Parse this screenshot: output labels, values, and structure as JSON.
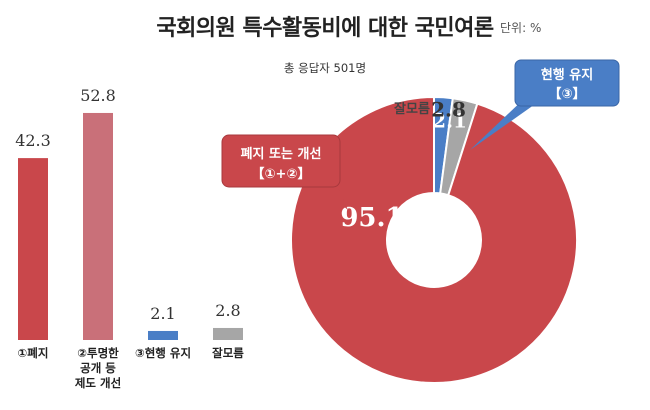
{
  "header": {
    "title": "국회의원 특수활동비에 대한 국민여론",
    "unit": "단위: %",
    "subtitle": "총 응답자 501명"
  },
  "colors": {
    "red": "#c9474b",
    "pink": "#c97079",
    "blue": "#4a7ec6",
    "gray": "#a6a6a6"
  },
  "chart_data": [
    {
      "type": "bar",
      "categories": [
        "①폐지",
        "②투명한 공개 등 제도 개선",
        "③현행 유지",
        "잘모름"
      ],
      "category_lines": [
        [
          "①폐지"
        ],
        [
          "②투명한",
          "공개 등",
          "제도 개선"
        ],
        [
          "③현행 유지"
        ],
        [
          "잘모름"
        ]
      ],
      "values": [
        42.3,
        52.8,
        2.1,
        2.8
      ],
      "value_labels": [
        "42.3",
        "52.8",
        "2.1",
        "2.8"
      ],
      "colors": [
        "#c9474b",
        "#c97079",
        "#4a7ec6",
        "#a6a6a6"
      ],
      "ylim": [
        0,
        60
      ]
    },
    {
      "type": "pie",
      "donut": true,
      "labels": [
        "현행 유지 【③】",
        "잘모름",
        "폐지 또는 개선 【①+②】"
      ],
      "values": [
        2.1,
        2.8,
        95.1
      ],
      "value_labels": [
        "2.1",
        "2.8",
        "95.1"
      ],
      "colors": [
        "#4a7ec6",
        "#a6a6a6",
        "#c9474b"
      ],
      "callouts": {
        "keep": [
          "현행 유지",
          "【③】"
        ],
        "unsure": "잘모름",
        "abolish": [
          "폐지 또는 개선",
          "【①+②】"
        ]
      }
    }
  ]
}
